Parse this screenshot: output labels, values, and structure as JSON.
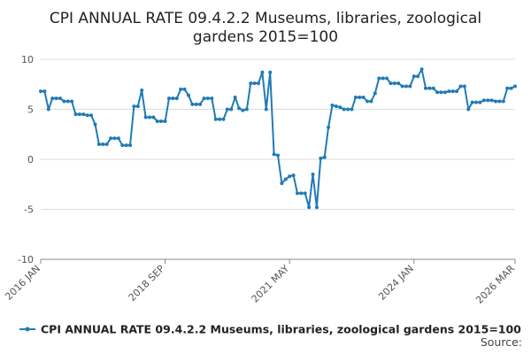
{
  "chart_data": {
    "type": "line",
    "title": "CPI ANNUAL RATE 09.4.2.2 Museums, libraries, zoological gardens 2015=100",
    "title_lines": [
      "CPI ANNUAL RATE 09.4.2.2 Museums, libraries, zoological",
      "gardens 2015=100"
    ],
    "xlabel": "",
    "ylabel": "",
    "ylim": [
      -10,
      10
    ],
    "yticks": [
      10,
      5,
      0,
      -5,
      -10
    ],
    "x_tick_labels": [
      "2016 JAN",
      "2018 SEP",
      "2021 MAY",
      "2024 JAN",
      "2026 MAR"
    ],
    "x_tick_index": [
      0,
      32,
      64,
      96,
      122
    ],
    "grid": "horizontal",
    "legend_position": "bottom",
    "color": "#1f7bb6",
    "source_label": "Source:",
    "series": [
      {
        "name": "CPI ANNUAL RATE 09.4.2.2 Museums, libraries, zoological gardens 2015=100",
        "start": "2016-01",
        "frequency": "monthly",
        "values": [
          6.8,
          6.8,
          5.0,
          6.1,
          6.1,
          6.1,
          5.8,
          5.8,
          5.8,
          4.5,
          4.5,
          4.5,
          4.4,
          4.4,
          3.5,
          1.5,
          1.5,
          1.5,
          2.1,
          2.1,
          2.1,
          1.4,
          1.4,
          1.4,
          5.3,
          5.3,
          6.9,
          4.2,
          4.2,
          4.2,
          3.8,
          3.8,
          3.8,
          6.1,
          6.1,
          6.1,
          7.0,
          7.0,
          6.4,
          5.5,
          5.5,
          5.5,
          6.1,
          6.1,
          6.1,
          4.0,
          4.0,
          4.0,
          5.0,
          5.0,
          6.2,
          5.1,
          4.9,
          5.0,
          7.6,
          7.6,
          7.6,
          8.7,
          5.0,
          8.7,
          0.5,
          0.4,
          -2.4,
          -2.0,
          -1.7,
          -1.6,
          -3.4,
          -3.4,
          -3.4,
          -4.8,
          -1.5,
          -4.8,
          0.1,
          0.2,
          3.2,
          5.4,
          5.3,
          5.2,
          5.0,
          5.0,
          5.0,
          6.2,
          6.2,
          6.2,
          5.8,
          5.8,
          6.6,
          8.1,
          8.1,
          8.1,
          7.6,
          7.6,
          7.6,
          7.3,
          7.3,
          7.3,
          8.3,
          8.3,
          9.0,
          7.1,
          7.1,
          7.1,
          6.7,
          6.7,
          6.7,
          6.8,
          6.8,
          6.8,
          7.3,
          7.3,
          5.0,
          5.7,
          5.7,
          5.7,
          5.9,
          5.9,
          5.9,
          5.8,
          5.8,
          5.8,
          7.1,
          7.1,
          7.3
        ]
      }
    ]
  }
}
